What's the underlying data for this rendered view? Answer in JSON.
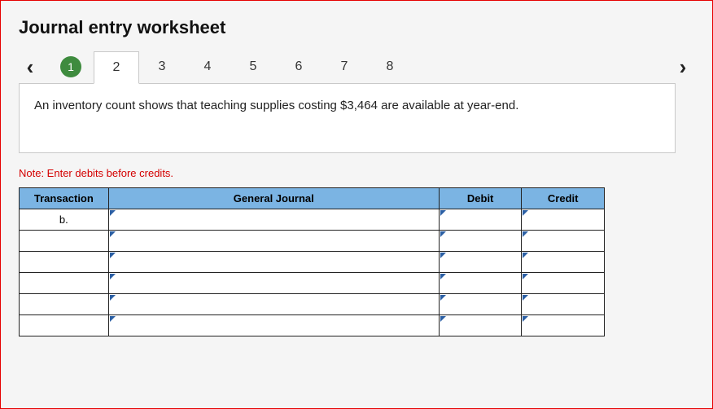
{
  "title": "Journal entry worksheet",
  "nav": {
    "prev_glyph": "‹",
    "next_glyph": "›"
  },
  "tabs": [
    {
      "label": "1",
      "state": "done"
    },
    {
      "label": "2",
      "state": "active"
    },
    {
      "label": "3",
      "state": "idle"
    },
    {
      "label": "4",
      "state": "idle"
    },
    {
      "label": "5",
      "state": "idle"
    },
    {
      "label": "6",
      "state": "idle"
    },
    {
      "label": "7",
      "state": "idle"
    },
    {
      "label": "8",
      "state": "idle"
    }
  ],
  "prompt": "An inventory count shows that teaching supplies costing $3,464 are available at year-end.",
  "note": "Note: Enter debits before credits.",
  "table": {
    "headers": {
      "transaction": "Transaction",
      "general_journal": "General Journal",
      "debit": "Debit",
      "credit": "Credit"
    },
    "header_bg": "#7bb4e3",
    "marker_color": "#2b5fa4",
    "rows": [
      {
        "transaction": "b.",
        "gj": "",
        "debit": "",
        "credit": ""
      },
      {
        "transaction": "",
        "gj": "",
        "debit": "",
        "credit": ""
      },
      {
        "transaction": "",
        "gj": "",
        "debit": "",
        "credit": ""
      },
      {
        "transaction": "",
        "gj": "",
        "debit": "",
        "credit": ""
      },
      {
        "transaction": "",
        "gj": "",
        "debit": "",
        "credit": ""
      },
      {
        "transaction": "",
        "gj": "",
        "debit": "",
        "credit": ""
      }
    ]
  }
}
